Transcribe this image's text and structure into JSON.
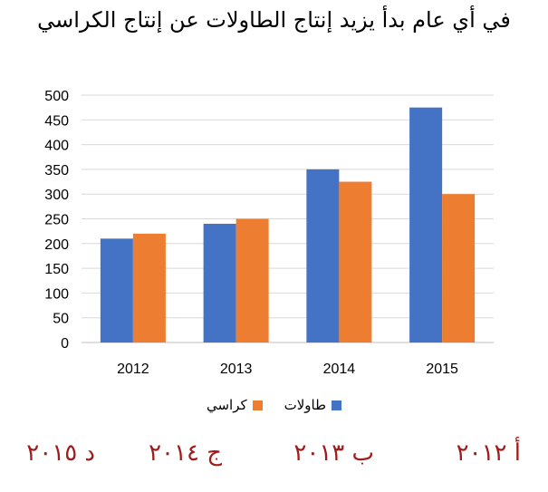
{
  "chart_data": {
    "type": "bar",
    "title": "في أي عام بدأ يزيد إنتاج الطاولات عن إنتاج الكراسي",
    "categories": [
      "2012",
      "2013",
      "2014",
      "2015"
    ],
    "series": [
      {
        "name": "طاولات",
        "values": [
          210,
          240,
          350,
          475
        ],
        "color": "#4472c4"
      },
      {
        "name": "كراسي",
        "values": [
          220,
          250,
          325,
          300
        ],
        "color": "#ed7d31"
      }
    ],
    "ylim": [
      0,
      500
    ],
    "yticks": [
      0,
      50,
      100,
      150,
      200,
      250,
      300,
      350,
      400,
      450,
      500
    ],
    "grid": true,
    "legend_position": "bottom"
  },
  "options": [
    {
      "label": "أ ٢٠١٢"
    },
    {
      "label": "ب ٢٠١٣"
    },
    {
      "label": "ج ٢٠١٤"
    },
    {
      "label": "د ٢٠١٥"
    }
  ]
}
